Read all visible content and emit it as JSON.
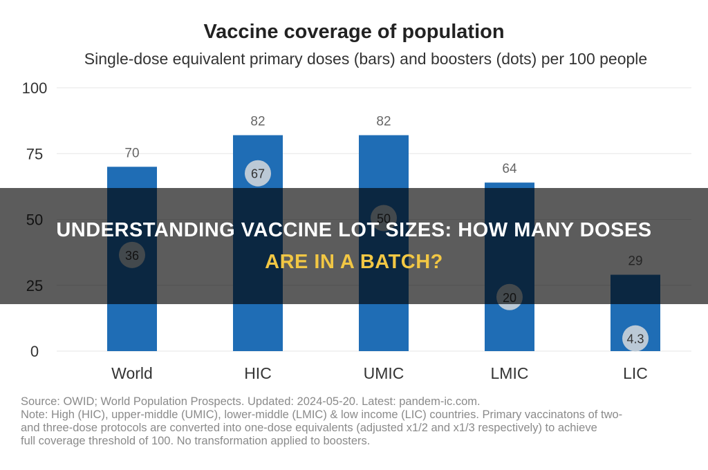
{
  "chart_data": {
    "type": "bar",
    "title": "Vaccine coverage of population",
    "subtitle": "Single-dose equivalent primary doses (bars) and boosters (dots) per 100 people",
    "categories": [
      "World",
      "HIC",
      "UMIC",
      "LMIC",
      "LIC"
    ],
    "series": [
      {
        "name": "Primary doses",
        "values": [
          70,
          82,
          82,
          64,
          29
        ],
        "labels": [
          "70",
          "82",
          "82",
          "64",
          "29"
        ]
      },
      {
        "name": "Boosters",
        "values": [
          36,
          67,
          50,
          20,
          4.3
        ],
        "labels": [
          "36",
          "67",
          "50",
          "20",
          "4.3"
        ]
      }
    ],
    "ylim": [
      0,
      100
    ],
    "yticks": [
      0,
      25,
      50,
      75,
      100
    ],
    "grid": true,
    "legend": "none",
    "colors": {
      "bar": "#1f6db5",
      "dot": "#c9d1d9",
      "axis_text": "#333333",
      "label_text": "#666666"
    }
  },
  "note": {
    "lines": [
      "Source: OWID; World Population Prospects. Updated: 2024-05-20. Latest: pandem-ic.com.",
      "Note: High (HIC), upper-middle (UMIC), lower-middle (LMIC) & low income (LIC) countries. Primary vaccinatons of two-",
      "and three-dose protocols are converted into one-dose equivalents (adjusted x1/2 and x1/3 respectively) to achieve",
      "full coverage threshold of 100. No transformation applied to boosters."
    ]
  },
  "overlay": {
    "line1": "UNDERSTANDING VACCINE LOT SIZES: HOW MANY DOSES",
    "line2": "ARE IN A BATCH?",
    "line1_color": "#ffffff",
    "line2_color": "#f2c744"
  }
}
